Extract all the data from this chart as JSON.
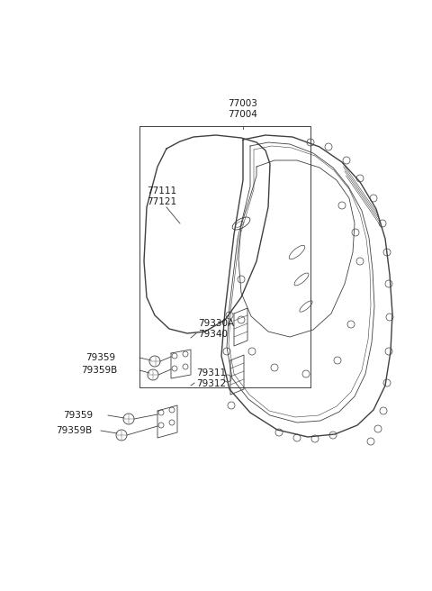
{
  "bg_color": "#ffffff",
  "line_color": "#404040",
  "text_color": "#1a1a1a",
  "figsize": [
    4.8,
    6.56
  ],
  "dpi": 100,
  "labels": {
    "77003_77004": "77003\n77004",
    "77111_77121": "77111\n77121",
    "79330A_79340": "79330A\n79340",
    "79311_79312": "79311\n79312",
    "79359_top": "79359",
    "79359B_top": "79359B",
    "79359_bot": "79359",
    "79359B_bot": "79359B"
  }
}
